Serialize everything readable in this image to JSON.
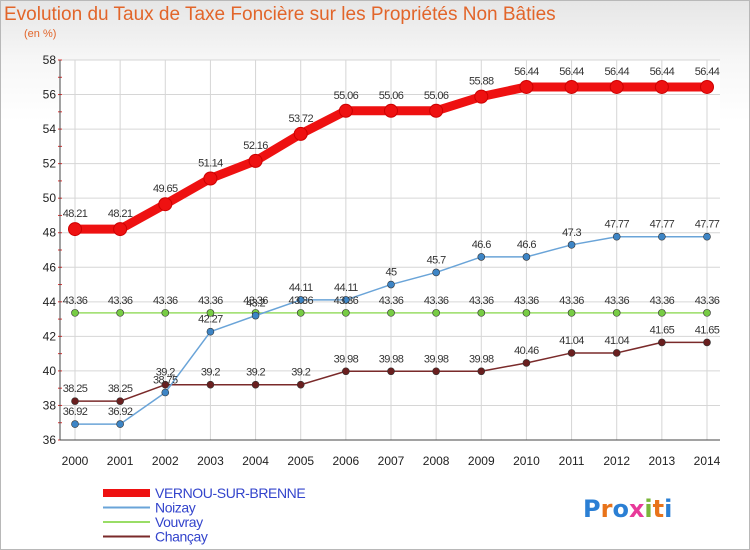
{
  "page": {
    "title": "Evolution du Taux de Taxe Foncière sur les Propriétés Non Bâties",
    "unit": "(en %)"
  },
  "logo": {
    "text": "Proxiti"
  },
  "chart_data": {
    "type": "line",
    "title": "Evolution du Taux de Taxe Foncière sur les Propriétés Non Bâties",
    "ylabel": "(en %)",
    "xlabel": "",
    "x": [
      2000,
      2001,
      2002,
      2003,
      2004,
      2005,
      2006,
      2007,
      2008,
      2009,
      2010,
      2011,
      2012,
      2013,
      2014
    ],
    "ylim": [
      36,
      58
    ],
    "yticks": [
      36,
      38,
      40,
      42,
      44,
      46,
      48,
      50,
      52,
      54,
      56,
      58
    ],
    "grid": true,
    "legend_position": "bottom-left",
    "series": [
      {
        "name": "VERNOU-SUR-BRENNE",
        "color": "#ee1111",
        "marker": "#ee1111",
        "values": [
          48.21,
          48.21,
          49.65,
          51.14,
          52.16,
          53.72,
          55.06,
          55.06,
          55.06,
          55.88,
          56.44,
          56.44,
          56.44,
          56.44,
          56.44
        ],
        "labels": [
          "48.21",
          "48.21",
          "49.65",
          "51.14",
          "52.16",
          "53.72",
          "55.06",
          "55.06",
          "55.06",
          "55.88",
          "56.44",
          "56.44",
          "56.44",
          "56.44",
          "56.44"
        ]
      },
      {
        "name": "Noizay",
        "color": "#6aa4d8",
        "marker": "#3d85c6",
        "values": [
          36.92,
          36.92,
          38.75,
          42.27,
          43.2,
          44.11,
          44.11,
          45,
          45.7,
          46.6,
          46.6,
          47.3,
          47.77,
          47.77,
          47.77
        ],
        "labels": [
          "36.92",
          "36.92",
          "38.75",
          "42.27",
          "43.2",
          "44.11",
          "44.11",
          "45",
          "45.7",
          "46.6",
          "46.6",
          "47.3",
          "47.77",
          "47.77",
          "47.77"
        ]
      },
      {
        "name": "Vouvray",
        "color": "#99dd66",
        "marker": "#77cc44",
        "values": [
          43.36,
          43.36,
          43.36,
          43.36,
          43.36,
          43.36,
          43.36,
          43.36,
          43.36,
          43.36,
          43.36,
          43.36,
          43.36,
          43.36,
          43.36
        ],
        "labels": [
          "43.36",
          "43.36",
          "43.36",
          "43.36",
          "43.36",
          "43.36",
          "43.36",
          "43.36",
          "43.36",
          "43.36",
          "43.36",
          "43.36",
          "43.36",
          "43.36",
          "43.36"
        ]
      },
      {
        "name": "Chançay",
        "color": "#7a2a2a",
        "marker": "#6a1f1f",
        "values": [
          38.25,
          38.25,
          39.2,
          39.2,
          39.2,
          39.2,
          39.98,
          39.98,
          39.98,
          39.98,
          40.46,
          41.04,
          41.04,
          41.65,
          41.65
        ],
        "labels": [
          "38.25",
          "38.25",
          "39.2",
          "39.2",
          "39.2",
          "39.2",
          "39.98",
          "39.98",
          "39.98",
          "39.98",
          "40.46",
          "41.04",
          "41.04",
          "41.65",
          "41.65"
        ]
      }
    ]
  }
}
